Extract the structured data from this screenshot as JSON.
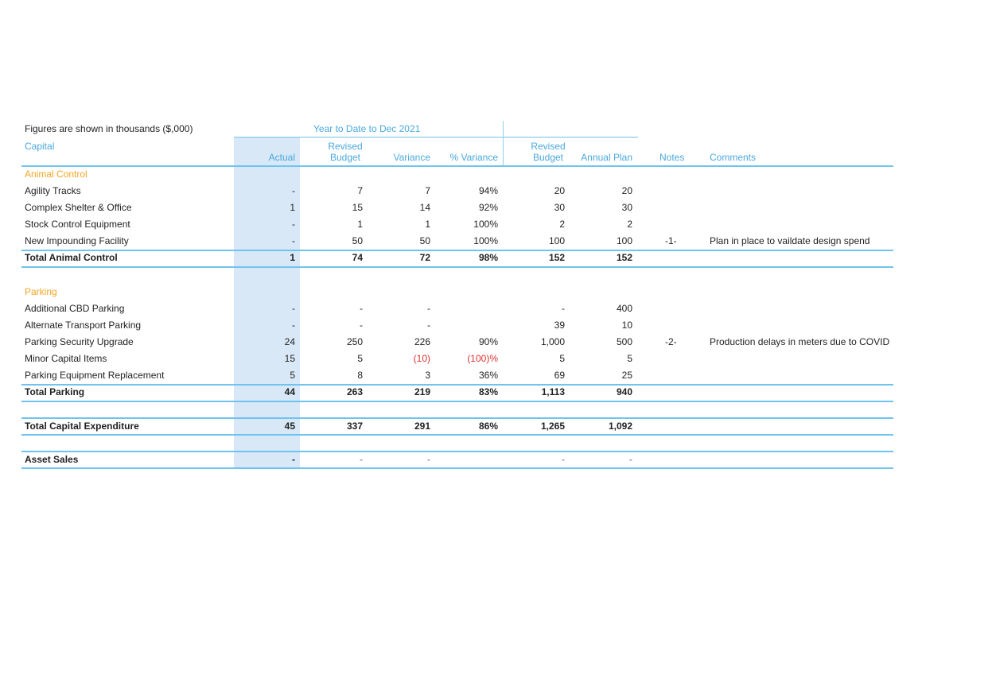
{
  "figures_note": "Figures are shown in thousands ($,000)",
  "period_label": "Year to Date to Dec 2021",
  "capital_label": "Capital",
  "columns": {
    "actual": "Actual",
    "revised_budget_ytd_1": "Revised",
    "revised_budget_ytd_2": "Budget",
    "variance": "Variance",
    "pct_variance": "% Variance",
    "revised_budget_1": "Revised",
    "revised_budget_2": "Budget",
    "annual_plan": "Annual Plan",
    "notes": "Notes",
    "comments": "Comments"
  },
  "rows": [
    {
      "label": "Animal Control",
      "type": "section"
    },
    {
      "label": "Agility Tracks",
      "actual": "-",
      "rbudget": "7",
      "variance": "7",
      "pct": "94%",
      "revised": "20",
      "annual": "20",
      "note": "",
      "comment": ""
    },
    {
      "label": "Complex Shelter & Office",
      "actual": "1",
      "rbudget": "15",
      "variance": "14",
      "pct": "92%",
      "revised": "30",
      "annual": "30",
      "note": "",
      "comment": ""
    },
    {
      "label": "Stock Control Equipment",
      "actual": "-",
      "rbudget": "1",
      "variance": "1",
      "pct": "100%",
      "revised": "2",
      "annual": "2",
      "note": "",
      "comment": ""
    },
    {
      "label": "New Impounding Facility",
      "actual": "-",
      "rbudget": "50",
      "variance": "50",
      "pct": "100%",
      "revised": "100",
      "annual": "100",
      "note": "-1-",
      "comment": "Plan in place to vaildate design spend"
    },
    {
      "label": "Total Animal Control",
      "type": "total",
      "actual": "1",
      "rbudget": "74",
      "variance": "72",
      "pct": "98%",
      "revised": "152",
      "annual": "152",
      "note": "",
      "comment": ""
    },
    {
      "label": "Parking",
      "type": "section"
    },
    {
      "label": "Additional CBD Parking",
      "actual": "-",
      "rbudget": "-",
      "variance": "-",
      "pct": "",
      "revised": "-",
      "annual": "400",
      "note": "",
      "comment": ""
    },
    {
      "label": "Alternate Transport Parking",
      "actual": "-",
      "rbudget": "-",
      "variance": "-",
      "pct": "",
      "revised": "39",
      "annual": "10",
      "note": "",
      "comment": ""
    },
    {
      "label": "Parking Security Upgrade",
      "actual": "24",
      "rbudget": "250",
      "variance": "226",
      "pct": "90%",
      "revised": "1,000",
      "annual": "500",
      "note": "-2-",
      "comment": "Production delays in meters due to COVID"
    },
    {
      "label": "Minor Capital Items",
      "actual": "15",
      "rbudget": "5",
      "variance": "(10)",
      "pct": "(100)%",
      "revised": "5",
      "annual": "5",
      "note": "",
      "comment": "",
      "negative": true
    },
    {
      "label": "Parking Equipment Replacement",
      "actual": "5",
      "rbudget": "8",
      "variance": "3",
      "pct": "36%",
      "revised": "69",
      "annual": "25",
      "note": "",
      "comment": ""
    },
    {
      "label": "Total Parking",
      "type": "total",
      "actual": "44",
      "rbudget": "263",
      "variance": "219",
      "pct": "83%",
      "revised": "1,113",
      "annual": "940",
      "note": "",
      "comment": ""
    },
    {
      "label": "Total Capital Expenditure",
      "type": "total",
      "actual": "45",
      "rbudget": "337",
      "variance": "291",
      "pct": "86%",
      "revised": "1,265",
      "annual": "1,092",
      "note": "",
      "comment": ""
    },
    {
      "label": "Asset Sales",
      "type": "total",
      "actual": "-",
      "rbudget": "-",
      "variance": "-",
      "pct": "",
      "revised": "-",
      "annual": "-",
      "note": "",
      "comment": ""
    }
  ],
  "colors": {
    "header_blue": "#4aa8dc",
    "section_orange": "#f5a623",
    "negative_red": "#e03030",
    "shade_blue": "#d8e8f7",
    "rule_blue": "#6fc3ee"
  }
}
